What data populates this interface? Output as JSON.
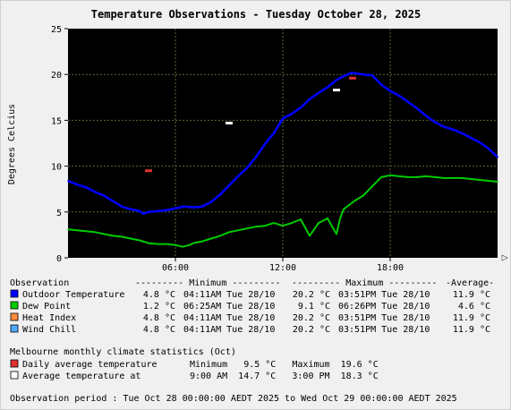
{
  "chart_data": {
    "type": "line",
    "title": "Temperature Observations - Tuesday October 28, 2025",
    "ylabel": "Degrees Celcius",
    "xlabel": "",
    "xlim_hours": [
      0,
      24
    ],
    "ylim": [
      0,
      25
    ],
    "yticks": [
      "0",
      "5",
      "10",
      "15",
      "20",
      "25"
    ],
    "xticks": [
      {
        "hour": 6,
        "label": "06:00"
      },
      {
        "hour": 12,
        "label": "12:00"
      },
      {
        "hour": 18,
        "label": "18:00"
      }
    ],
    "grid": true,
    "series": [
      {
        "name": "Outdoor Temperature",
        "color": "#0000ff",
        "points": [
          [
            0,
            8.4
          ],
          [
            0.5,
            8.0
          ],
          [
            1,
            7.7
          ],
          [
            1.5,
            7.2
          ],
          [
            2,
            6.8
          ],
          [
            2.5,
            6.2
          ],
          [
            3,
            5.6
          ],
          [
            3.5,
            5.3
          ],
          [
            4,
            5.1
          ],
          [
            4.2,
            4.8
          ],
          [
            4.5,
            5.0
          ],
          [
            5,
            5.1
          ],
          [
            5.5,
            5.2
          ],
          [
            6,
            5.4
          ],
          [
            6.5,
            5.6
          ],
          [
            7,
            5.5
          ],
          [
            7.5,
            5.6
          ],
          [
            8,
            6.1
          ],
          [
            8.5,
            6.9
          ],
          [
            9,
            7.9
          ],
          [
            9.5,
            8.9
          ],
          [
            10,
            9.8
          ],
          [
            10.5,
            11.0
          ],
          [
            11,
            12.4
          ],
          [
            11.5,
            13.6
          ],
          [
            12,
            15.2
          ],
          [
            12.5,
            15.7
          ],
          [
            13,
            16.4
          ],
          [
            13.5,
            17.3
          ],
          [
            14,
            18.0
          ],
          [
            14.5,
            18.6
          ],
          [
            15,
            19.4
          ],
          [
            15.5,
            19.9
          ],
          [
            15.85,
            20.2
          ],
          [
            16.5,
            20.0
          ],
          [
            17,
            19.9
          ],
          [
            17.5,
            18.9
          ],
          [
            18,
            18.2
          ],
          [
            18.5,
            17.7
          ],
          [
            19,
            17.0
          ],
          [
            19.5,
            16.3
          ],
          [
            20,
            15.5
          ],
          [
            20.5,
            14.8
          ],
          [
            21,
            14.3
          ],
          [
            21.5,
            14.0
          ],
          [
            22,
            13.6
          ],
          [
            22.5,
            13.1
          ],
          [
            23,
            12.6
          ],
          [
            23.5,
            11.9
          ],
          [
            24,
            11.0
          ]
        ]
      },
      {
        "name": "Dew Point",
        "color": "#00cc00",
        "points": [
          [
            0,
            3.1
          ],
          [
            0.5,
            3.0
          ],
          [
            1,
            2.9
          ],
          [
            1.5,
            2.8
          ],
          [
            2,
            2.6
          ],
          [
            2.5,
            2.4
          ],
          [
            3,
            2.3
          ],
          [
            3.5,
            2.1
          ],
          [
            4,
            1.9
          ],
          [
            4.5,
            1.6
          ],
          [
            5,
            1.5
          ],
          [
            5.5,
            1.5
          ],
          [
            6,
            1.4
          ],
          [
            6.4,
            1.2
          ],
          [
            6.8,
            1.4
          ],
          [
            7,
            1.6
          ],
          [
            7.5,
            1.8
          ],
          [
            8,
            2.1
          ],
          [
            8.5,
            2.4
          ],
          [
            9,
            2.8
          ],
          [
            9.5,
            3.0
          ],
          [
            10,
            3.2
          ],
          [
            10.5,
            3.4
          ],
          [
            11,
            3.5
          ],
          [
            11.5,
            3.8
          ],
          [
            12,
            3.5
          ],
          [
            12.5,
            3.8
          ],
          [
            13,
            4.2
          ],
          [
            13.5,
            2.4
          ],
          [
            14,
            3.8
          ],
          [
            14.5,
            4.3
          ],
          [
            15,
            2.6
          ],
          [
            15.2,
            4.3
          ],
          [
            15.4,
            5.3
          ],
          [
            16,
            6.2
          ],
          [
            16.5,
            6.8
          ],
          [
            17,
            7.8
          ],
          [
            17.5,
            8.8
          ],
          [
            18,
            9.0
          ],
          [
            18.5,
            8.9
          ],
          [
            19,
            8.8
          ],
          [
            19.5,
            8.8
          ],
          [
            20,
            8.9
          ],
          [
            21,
            8.7
          ],
          [
            22,
            8.7
          ],
          [
            23,
            8.5
          ],
          [
            24,
            8.3
          ]
        ]
      }
    ],
    "markers": [
      {
        "series": "Daily average temperature (minimum)",
        "hour": 4.5,
        "value": 9.5,
        "color": "#e03030"
      },
      {
        "series": "Daily average temperature (maximum)",
        "hour": 15.9,
        "value": 19.6,
        "color": "#e03030"
      },
      {
        "series": "Average temperature at 9:00 AM",
        "hour": 9.0,
        "value": 14.7,
        "color": "#ffffff"
      },
      {
        "series": "Average temperature at 3:00 PM",
        "hour": 15.0,
        "value": 18.3,
        "color": "#ffffff"
      }
    ]
  },
  "table": {
    "header": {
      "observation": "Observation",
      "minimum": "--------- Minimum ---------",
      "maximum": "--------- Maximum ---------",
      "average": "-Average-"
    },
    "rows": [
      {
        "name": "Outdoor Temperature",
        "color": "#0000ff",
        "min": "4.8 °C",
        "min_time": "04:11AM Tue 28/10",
        "max": "20.2 °C",
        "max_time": "03:51PM Tue 28/10",
        "avg": "11.9 °C"
      },
      {
        "name": "Dew Point",
        "color": "#00cc00",
        "min": "1.2 °C",
        "min_time": "06:25AM Tue 28/10",
        "max": "9.1 °C",
        "max_time": "06:26PM Tue 28/10",
        "avg": "4.6 °C"
      },
      {
        "name": "Heat Index",
        "color": "#ff8c3c",
        "min": "4.8 °C",
        "min_time": "04:11AM Tue 28/10",
        "max": "20.2 °C",
        "max_time": "03:51PM Tue 28/10",
        "avg": "11.9 °C"
      },
      {
        "name": "Wind Chill",
        "color": "#50a8ff",
        "min": "4.8 °C",
        "min_time": "04:11AM Tue 28/10",
        "max": "20.2 °C",
        "max_time": "03:51PM Tue 28/10",
        "avg": "11.9 °C"
      }
    ]
  },
  "climate": {
    "heading": "Melbourne monthly climate statistics (Oct)",
    "daily_label": "Daily average temperature",
    "daily_stats": "Minimum   9.5 °C   Maximum  19.6 °C",
    "daily_color": "#e03030",
    "avg_label": "Average temperature at",
    "avg_stats": "9:00 AM  14.7 °C   3:00 PM  18.3 °C",
    "avg_color": "#ffffff"
  },
  "period": "Observation period : Tue Oct 28 00:00:00 AEDT 2025 to Wed Oct 29 00:00:00 AEDT 2025"
}
